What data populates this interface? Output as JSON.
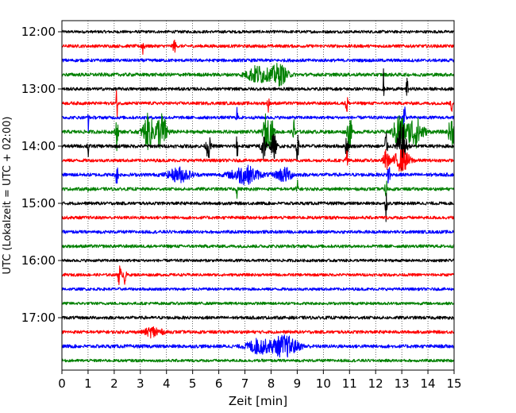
{
  "chart_data": {
    "type": "line",
    "title": "",
    "xlabel": "Zeit  [min]",
    "ylabel": "UTC (Lokalzeit = UTC + 02:00)",
    "xlim": [
      0,
      15
    ],
    "x_ticks": [
      0,
      1,
      2,
      3,
      4,
      5,
      6,
      7,
      8,
      9,
      10,
      11,
      12,
      13,
      14,
      15
    ],
    "x_tick_labels": [
      "0",
      "1",
      "2",
      "3",
      "4",
      "5",
      "6",
      "7",
      "8",
      "9",
      "10",
      "11",
      "12",
      "13",
      "14",
      "15"
    ],
    "y_tick_labels": [
      "12:00",
      "13:00",
      "14:00",
      "15:00",
      "16:00",
      "17:00"
    ],
    "y_tick_traces": [
      0,
      4,
      8,
      12,
      16,
      20
    ],
    "grid": "vertical dotted at each minute",
    "trace_colors": [
      "#000000",
      "#ff0000",
      "#0000ff",
      "#008000"
    ],
    "traces_per_hour": 4,
    "minutes_per_trace": 15,
    "series": [
      {
        "start": "12:00",
        "color": "#000000",
        "noise": 0.18,
        "events": []
      },
      {
        "start": "12:15",
        "color": "#ff0000",
        "noise": 0.2,
        "events": [
          {
            "t": 3.1,
            "a": 0.5,
            "w": 0.05
          },
          {
            "t": 4.3,
            "a": 0.4,
            "w": 0.05
          }
        ]
      },
      {
        "start": "12:30",
        "color": "#0000ff",
        "noise": 0.2,
        "events": []
      },
      {
        "start": "12:45",
        "color": "#008000",
        "noise": 0.22,
        "events": [
          {
            "t": 7.5,
            "a": 0.5,
            "w": 0.4
          },
          {
            "t": 8.3,
            "a": 0.6,
            "w": 0.3
          }
        ]
      },
      {
        "start": "13:00",
        "color": "#000000",
        "noise": 0.2,
        "events": [
          {
            "t": 12.3,
            "a": 1.3,
            "w": 0.02
          },
          {
            "t": 13.2,
            "a": 0.8,
            "w": 0.03
          }
        ]
      },
      {
        "start": "13:15",
        "color": "#ff0000",
        "noise": 0.2,
        "events": [
          {
            "t": 2.1,
            "a": 0.9,
            "w": 0.03
          },
          {
            "t": 7.9,
            "a": 0.8,
            "w": 0.03
          },
          {
            "t": 10.9,
            "a": 0.9,
            "w": 0.04
          },
          {
            "t": 14.9,
            "a": 0.7,
            "w": 0.03
          }
        ]
      },
      {
        "start": "13:30",
        "color": "#0000ff",
        "noise": 0.2,
        "events": [
          {
            "t": 1.0,
            "a": 1.0,
            "w": 0.02
          },
          {
            "t": 6.7,
            "a": 1.0,
            "w": 0.02
          },
          {
            "t": 13.1,
            "a": 1.2,
            "w": 0.04
          }
        ]
      },
      {
        "start": "13:45",
        "color": "#008000",
        "noise": 0.22,
        "events": [
          {
            "t": 2.1,
            "a": 1.0,
            "w": 0.05
          },
          {
            "t": 3.3,
            "a": 1.0,
            "w": 0.2
          },
          {
            "t": 3.8,
            "a": 1.1,
            "w": 0.2
          },
          {
            "t": 7.8,
            "a": 1.0,
            "w": 0.1
          },
          {
            "t": 8.0,
            "a": 0.8,
            "w": 0.1
          },
          {
            "t": 8.9,
            "a": 0.9,
            "w": 0.05
          },
          {
            "t": 11.0,
            "a": 1.0,
            "w": 0.08
          },
          {
            "t": 12.9,
            "a": 1.1,
            "w": 0.2
          },
          {
            "t": 13.5,
            "a": 0.9,
            "w": 0.3
          },
          {
            "t": 14.9,
            "a": 1.0,
            "w": 0.1
          }
        ]
      },
      {
        "start": "14:00",
        "color": "#000000",
        "noise": 0.22,
        "events": [
          {
            "t": 1.0,
            "a": 0.9,
            "w": 0.03
          },
          {
            "t": 5.6,
            "a": 0.7,
            "w": 0.08
          },
          {
            "t": 6.7,
            "a": 0.9,
            "w": 0.03
          },
          {
            "t": 7.7,
            "a": 0.8,
            "w": 0.1
          },
          {
            "t": 8.1,
            "a": 0.7,
            "w": 0.1
          },
          {
            "t": 9.0,
            "a": 0.8,
            "w": 0.05
          },
          {
            "t": 10.9,
            "a": 0.8,
            "w": 0.05
          },
          {
            "t": 12.4,
            "a": 1.2,
            "w": 0.04
          },
          {
            "t": 13.0,
            "a": 1.4,
            "w": 0.15
          }
        ]
      },
      {
        "start": "14:15",
        "color": "#ff0000",
        "noise": 0.2,
        "events": [
          {
            "t": 10.9,
            "a": 0.8,
            "w": 0.04
          },
          {
            "t": 12.4,
            "a": 0.6,
            "w": 0.1
          },
          {
            "t": 13.0,
            "a": 0.6,
            "w": 0.3
          }
        ]
      },
      {
        "start": "14:30",
        "color": "#0000ff",
        "noise": 0.22,
        "events": [
          {
            "t": 2.1,
            "a": 0.6,
            "w": 0.05
          },
          {
            "t": 4.5,
            "a": 0.4,
            "w": 0.4
          },
          {
            "t": 7.0,
            "a": 0.5,
            "w": 0.5
          },
          {
            "t": 8.5,
            "a": 0.4,
            "w": 0.3
          },
          {
            "t": 12.5,
            "a": 0.7,
            "w": 0.05
          }
        ]
      },
      {
        "start": "14:45",
        "color": "#008000",
        "noise": 0.2,
        "events": [
          {
            "t": 1.0,
            "a": 0.4,
            "w": 0.03
          },
          {
            "t": 6.7,
            "a": 0.5,
            "w": 0.03
          },
          {
            "t": 9.0,
            "a": 0.5,
            "w": 0.04
          },
          {
            "t": 12.4,
            "a": 0.7,
            "w": 0.04
          }
        ]
      },
      {
        "start": "15:00",
        "color": "#000000",
        "noise": 0.2,
        "events": [
          {
            "t": 12.4,
            "a": 1.0,
            "w": 0.03
          }
        ]
      },
      {
        "start": "15:15",
        "color": "#ff0000",
        "noise": 0.2,
        "events": []
      },
      {
        "start": "15:30",
        "color": "#0000ff",
        "noise": 0.2,
        "events": []
      },
      {
        "start": "15:45",
        "color": "#008000",
        "noise": 0.2,
        "events": []
      },
      {
        "start": "16:00",
        "color": "#000000",
        "noise": 0.18,
        "events": []
      },
      {
        "start": "16:15",
        "color": "#ff0000",
        "noise": 0.18,
        "events": [
          {
            "t": 2.2,
            "a": 0.6,
            "w": 0.06
          },
          {
            "t": 2.4,
            "a": 0.6,
            "w": 0.05
          }
        ]
      },
      {
        "start": "16:30",
        "color": "#0000ff",
        "noise": 0.18,
        "events": []
      },
      {
        "start": "16:45",
        "color": "#008000",
        "noise": 0.18,
        "events": []
      },
      {
        "start": "17:00",
        "color": "#000000",
        "noise": 0.2,
        "events": []
      },
      {
        "start": "17:15",
        "color": "#ff0000",
        "noise": 0.2,
        "events": [
          {
            "t": 3.5,
            "a": 0.3,
            "w": 0.3
          }
        ]
      },
      {
        "start": "17:30",
        "color": "#0000ff",
        "noise": 0.22,
        "events": [
          {
            "t": 7.5,
            "a": 0.4,
            "w": 0.4
          },
          {
            "t": 8.5,
            "a": 0.6,
            "w": 0.5
          }
        ]
      },
      {
        "start": "17:45",
        "color": "#008000",
        "noise": 0.18,
        "events": []
      }
    ]
  }
}
